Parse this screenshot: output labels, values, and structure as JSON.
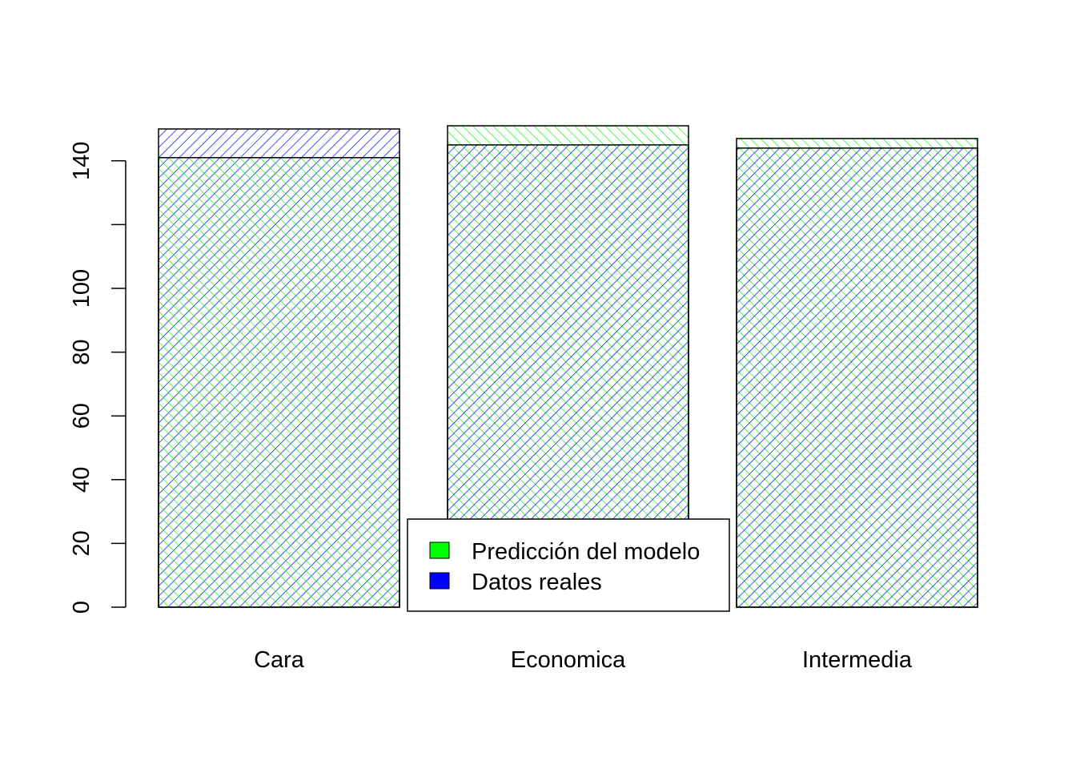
{
  "chart_data": {
    "type": "bar",
    "categories": [
      "Cara",
      "Economica",
      "Intermedia"
    ],
    "series": [
      {
        "name": "Predicción del modelo",
        "values": [
          141,
          151,
          147
        ],
        "color": "#00ff00",
        "hatch": "-45deg"
      },
      {
        "name": "Datos reales",
        "values": [
          150,
          145,
          144
        ],
        "color": "#0000ff",
        "hatch": "45deg"
      }
    ],
    "yticks": [
      0,
      20,
      40,
      60,
      80,
      100,
      120,
      140
    ],
    "ytick_labels": [
      "0",
      "20",
      "40",
      "60",
      "80",
      "100",
      "",
      "140"
    ],
    "ylim": [
      0,
      150
    ],
    "overlay": true,
    "grid": false,
    "legend": {
      "position": "bottom-center"
    }
  }
}
